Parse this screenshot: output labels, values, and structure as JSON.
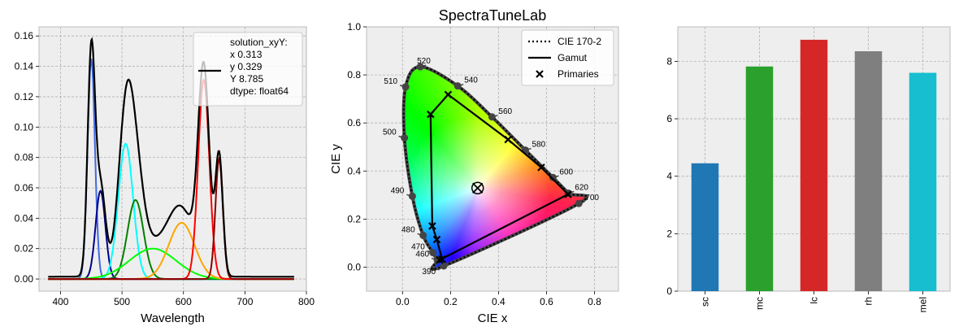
{
  "figure_title": "SpectraTuneLab",
  "chart_data": [
    {
      "type": "line",
      "panel": "spectrum",
      "xlabel": "Wavelength",
      "ylabel": "",
      "xlim": [
        365,
        800
      ],
      "ylim": [
        -0.008,
        0.166
      ],
      "xticks": [
        400,
        500,
        600,
        700,
        800
      ],
      "yticks": [
        0.0,
        0.02,
        0.04,
        0.06,
        0.08,
        0.1,
        0.12,
        0.14,
        0.16
      ],
      "grid": true,
      "legend": {
        "placement": "top-right",
        "entries": [
          {
            "label_lines": [
              "solution_xyY:",
              "x    0.313",
              "y    0.329",
              "Y    8.785",
              "dtype: float64"
            ],
            "color": "#000000"
          }
        ]
      },
      "series": [
        {
          "color": "#4169e1",
          "peak": 450,
          "amp": 0.145,
          "width": 6
        },
        {
          "color": "#00008b",
          "peak": 465,
          "amp": 0.058,
          "width": 8
        },
        {
          "color": "#00ffff",
          "peak": 506,
          "amp": 0.089,
          "width": 12
        },
        {
          "color": "#008000",
          "peak": 522,
          "amp": 0.052,
          "width": 13
        },
        {
          "color": "#00ff00",
          "peak": 550,
          "amp": 0.02,
          "width": 38
        },
        {
          "color": "#ffa500",
          "peak": 597,
          "amp": 0.037,
          "width": 21
        },
        {
          "color": "#ff0000",
          "peak": 633,
          "amp": 0.131,
          "width": 9
        },
        {
          "color": "#8b0000",
          "peak": 658,
          "amp": 0.079,
          "width": 6
        }
      ],
      "total": {
        "color": "#000000",
        "baseline": 0.0015
      }
    },
    {
      "type": "scatter",
      "panel": "chromaticity",
      "title": "SpectraTuneLab",
      "xlabel": "CIE x",
      "ylabel": "CIE y",
      "xlim": [
        -0.15,
        0.9
      ],
      "ylim": [
        -0.1,
        1.0
      ],
      "xticks": [
        0.0,
        0.2,
        0.4,
        0.6,
        0.8
      ],
      "yticks": [
        0.0,
        0.2,
        0.4,
        0.6,
        0.8,
        1.0
      ],
      "grid": true,
      "legend": {
        "placement": "top-right",
        "entries": [
          {
            "label": "CIE 170-2",
            "style": "dotted"
          },
          {
            "label": "Gamut",
            "style": "solid"
          },
          {
            "label": "Primaries",
            "style": "x-marker"
          }
        ]
      },
      "locus": [
        {
          "nm": 390,
          "x": 0.172,
          "y": 0.005
        },
        {
          "nm": 460,
          "x": 0.145,
          "y": 0.03
        },
        {
          "nm": 470,
          "x": 0.127,
          "y": 0.06
        },
        {
          "nm": 480,
          "x": 0.086,
          "y": 0.132
        },
        {
          "nm": 490,
          "x": 0.041,
          "y": 0.295
        },
        {
          "nm": 500,
          "x": 0.008,
          "y": 0.538
        },
        {
          "nm": 510,
          "x": 0.013,
          "y": 0.75
        },
        {
          "nm": 520,
          "x": 0.074,
          "y": 0.834
        },
        {
          "nm": 540,
          "x": 0.23,
          "y": 0.754
        },
        {
          "nm": 560,
          "x": 0.373,
          "y": 0.625
        },
        {
          "nm": 580,
          "x": 0.512,
          "y": 0.487
        },
        {
          "nm": 600,
          "x": 0.627,
          "y": 0.373
        },
        {
          "nm": 620,
          "x": 0.691,
          "y": 0.308
        },
        {
          "nm": 700,
          "x": 0.735,
          "y": 0.265
        }
      ],
      "labeled_nm": [
        390,
        460,
        470,
        480,
        490,
        500,
        510,
        520,
        540,
        560,
        580,
        600,
        620,
        700
      ],
      "primaries": [
        {
          "x": 0.124,
          "y": 0.171
        },
        {
          "x": 0.143,
          "y": 0.115
        },
        {
          "x": 0.165,
          "y": 0.033
        },
        {
          "x": 0.155,
          "y": 0.03
        },
        {
          "x": 0.69,
          "y": 0.303
        },
        {
          "x": 0.578,
          "y": 0.415
        },
        {
          "x": 0.44,
          "y": 0.531
        },
        {
          "x": 0.19,
          "y": 0.718
        },
        {
          "x": 0.117,
          "y": 0.636
        }
      ],
      "gamut": [
        {
          "x": 0.117,
          "y": 0.636
        },
        {
          "x": 0.19,
          "y": 0.718
        },
        {
          "x": 0.44,
          "y": 0.531
        },
        {
          "x": 0.578,
          "y": 0.415
        },
        {
          "x": 0.69,
          "y": 0.303
        },
        {
          "x": 0.155,
          "y": 0.03
        },
        {
          "x": 0.165,
          "y": 0.033
        },
        {
          "x": 0.143,
          "y": 0.115
        },
        {
          "x": 0.124,
          "y": 0.171
        }
      ],
      "solution_point": {
        "x": 0.313,
        "y": 0.329
      }
    },
    {
      "type": "bar",
      "panel": "alpha-opic",
      "categories": [
        "sc",
        "mc",
        "lc",
        "rh",
        "mel"
      ],
      "values": [
        4.45,
        7.82,
        8.75,
        8.35,
        7.6
      ],
      "colors": [
        "#1f77b4",
        "#2ca02c",
        "#d62728",
        "#7f7f7f",
        "#17becf"
      ],
      "ylim": [
        0,
        9.2
      ],
      "yticks": [
        0,
        2,
        4,
        6,
        8
      ],
      "grid": true
    }
  ]
}
